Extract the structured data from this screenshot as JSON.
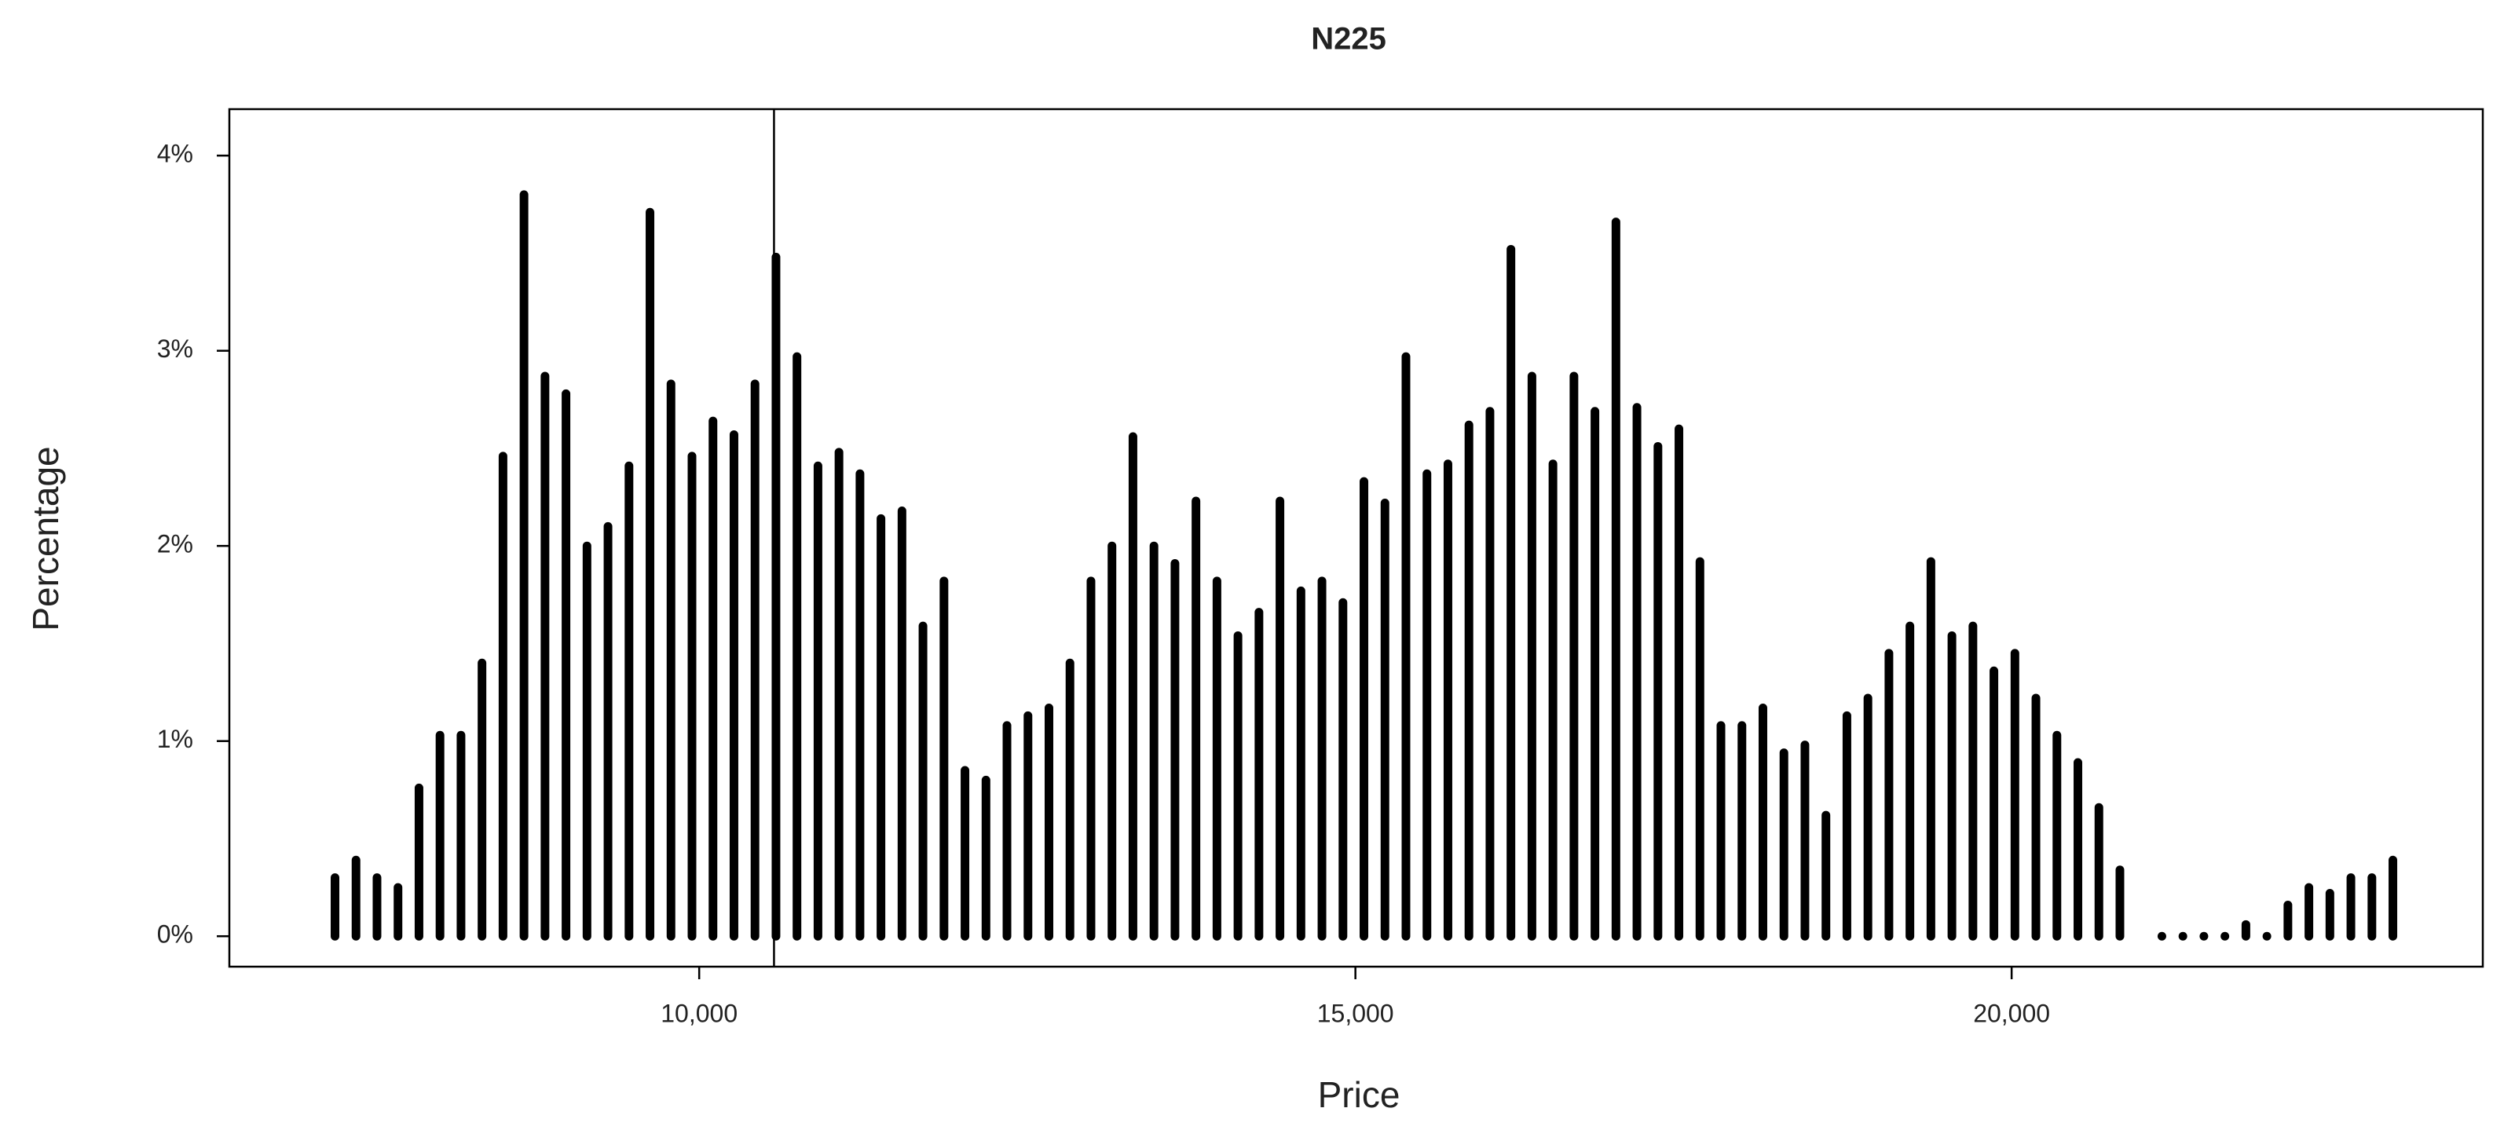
{
  "chart_data": {
    "type": "spike",
    "title": "N225",
    "xlabel": "Price",
    "ylabel": "Percentage",
    "color": "#000000",
    "x": [
      7225,
      7385,
      7545,
      7705,
      7865,
      8025,
      8185,
      8345,
      8505,
      8665,
      8825,
      8985,
      9145,
      9305,
      9465,
      9625,
      9785,
      9945,
      10105,
      10265,
      10425,
      10585,
      10745,
      10905,
      11065,
      11225,
      11385,
      11545,
      11705,
      11865,
      12025,
      12185,
      12345,
      12505,
      12665,
      12825,
      12985,
      13145,
      13305,
      13465,
      13625,
      13785,
      13945,
      14105,
      14265,
      14425,
      14585,
      14745,
      14905,
      15065,
      15225,
      15385,
      15545,
      15705,
      15865,
      16025,
      16185,
      16345,
      16505,
      16665,
      16825,
      16985,
      17145,
      17305,
      17465,
      17625,
      17785,
      17945,
      18105,
      18265,
      18425,
      18585,
      18745,
      18905,
      19065,
      19225,
      19385,
      19545,
      19705,
      19865,
      20025,
      20185,
      20345,
      20505,
      20665,
      20825,
      21145,
      21305,
      21465,
      21625,
      21785,
      21945,
      22105,
      22265,
      22425,
      22585,
      22745,
      22905
    ],
    "values": [
      0.3,
      0.39,
      0.3,
      0.25,
      0.76,
      1.03,
      1.03,
      1.4,
      2.46,
      3.8,
      2.87,
      2.78,
      2.0,
      2.1,
      2.41,
      3.71,
      2.83,
      2.46,
      2.64,
      2.57,
      2.83,
      3.48,
      2.97,
      2.41,
      2.48,
      2.37,
      2.14,
      2.18,
      1.59,
      1.82,
      0.85,
      0.8,
      1.08,
      1.13,
      1.17,
      1.4,
      1.82,
      2.0,
      2.56,
      2.0,
      1.91,
      2.23,
      1.82,
      1.54,
      1.66,
      2.23,
      1.77,
      1.82,
      1.71,
      2.33,
      2.22,
      2.97,
      2.37,
      2.42,
      2.62,
      2.69,
      3.52,
      2.87,
      2.42,
      2.87,
      2.69,
      3.66,
      2.71,
      2.51,
      2.6,
      1.92,
      1.08,
      1.08,
      1.17,
      0.94,
      0.98,
      0.62,
      1.13,
      1.22,
      1.45,
      1.59,
      1.92,
      1.54,
      1.59,
      1.36,
      1.45,
      1.22,
      1.03,
      0.89,
      0.66,
      0.34,
      0,
      0,
      0,
      0,
      0.06,
      0,
      0.16,
      0.25,
      0.22,
      0.3,
      0.3,
      0.39
    ],
    "vline": 10570,
    "xlim": [
      6420,
      23590
    ],
    "xticks": [
      {
        "value": 10000,
        "label": "10,000"
      },
      {
        "value": 15000,
        "label": "15,000"
      },
      {
        "value": 20000,
        "label": "20,000"
      }
    ],
    "ylim": [
      -0.156,
      4.238
    ],
    "yticks": [
      {
        "value": 0,
        "label": "0%"
      },
      {
        "value": 1,
        "label": "1%"
      },
      {
        "value": 2,
        "label": "2%"
      },
      {
        "value": 3,
        "label": "3%"
      },
      {
        "value": 4,
        "label": "4%"
      }
    ]
  }
}
